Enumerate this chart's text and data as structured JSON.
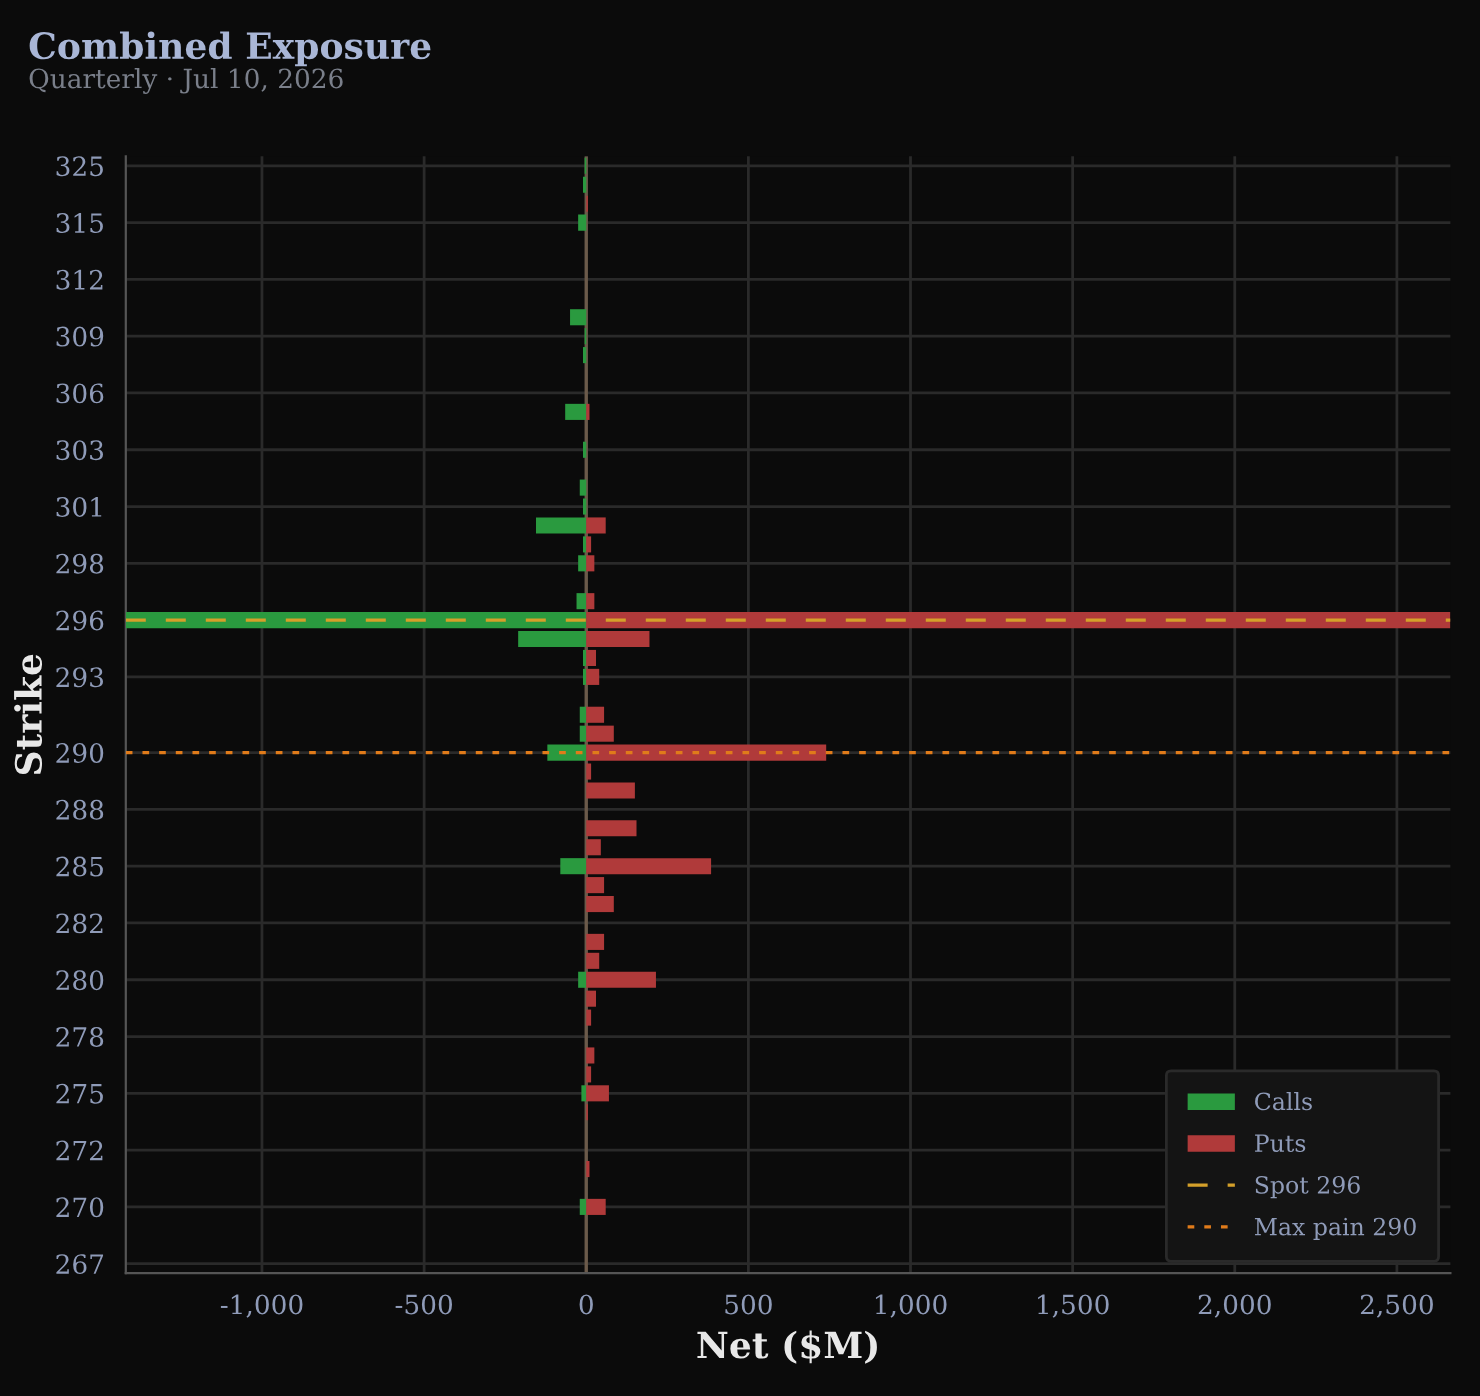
{
  "chart_data": {
    "type": "bar",
    "orientation": "horizontal",
    "title": "Combined Exposure",
    "subtitle": "Quarterly · Jul 10, 2026",
    "xlabel": "Net ($M)",
    "ylabel": "Strike",
    "categories": [
      "325",
      null,
      null,
      "315",
      null,
      null,
      "312",
      null,
      null,
      "309",
      null,
      null,
      "306",
      null,
      null,
      "303",
      null,
      null,
      "301",
      null,
      null,
      "298",
      null,
      null,
      "296",
      null,
      null,
      "293",
      null,
      null,
      null,
      "290",
      null,
      null,
      "288",
      null,
      null,
      "285",
      null,
      null,
      "282",
      null,
      null,
      "280",
      null,
      null,
      "278",
      null,
      null,
      "275",
      null,
      null,
      "272",
      null,
      null,
      "270",
      null,
      null,
      "267"
    ],
    "series": [
      {
        "name": "Calls",
        "color": "#2a9a3f",
        "values": [
          -5,
          -10,
          0,
          -25,
          0,
          0,
          0,
          0,
          -50,
          -5,
          -10,
          0,
          0,
          -65,
          0,
          -10,
          0,
          -20,
          -10,
          -155,
          -10,
          -25,
          0,
          -30,
          -1420,
          -210,
          -10,
          -10,
          0,
          -20,
          -20,
          -120,
          0,
          0,
          0,
          0,
          0,
          -80,
          0,
          0,
          0,
          0,
          0,
          -25,
          0,
          0,
          0,
          0,
          0,
          -15,
          0,
          0,
          0,
          0,
          0,
          -20,
          0,
          0,
          0
        ]
      },
      {
        "name": "Puts",
        "color": "#b03a3a",
        "values": [
          0,
          0,
          5,
          0,
          0,
          0,
          0,
          0,
          0,
          0,
          0,
          0,
          0,
          10,
          0,
          0,
          0,
          0,
          0,
          60,
          15,
          25,
          0,
          25,
          2665,
          195,
          30,
          40,
          0,
          55,
          85,
          740,
          15,
          150,
          0,
          155,
          45,
          385,
          55,
          85,
          0,
          55,
          40,
          215,
          30,
          15,
          0,
          25,
          15,
          70,
          5,
          0,
          0,
          10,
          0,
          60,
          0,
          0,
          0
        ]
      }
    ],
    "xlim": [
      -1420,
      2665
    ],
    "xticks": [
      {
        "value": -1000,
        "label": "-1,000"
      },
      -500,
      0,
      500,
      {
        "value": 1000,
        "label": "1,000"
      },
      {
        "value": 1500,
        "label": "1,500"
      },
      {
        "value": 2000,
        "label": "2,000"
      },
      {
        "value": 2500,
        "label": "2,500"
      }
    ],
    "ref_lines": [
      {
        "axis": "x",
        "value": 0,
        "color": "#6b5a4a",
        "line_style": "solid"
      },
      {
        "axis": "y",
        "value": "296",
        "label": "Spot 296",
        "color": "#d4a02a",
        "line_style": "dashed"
      },
      {
        "axis": "y",
        "value": "290",
        "label": "Max pain 290",
        "color": "#e07b1a",
        "line_style": "dotted"
      }
    ],
    "grid": true,
    "legend": "bottom right"
  }
}
